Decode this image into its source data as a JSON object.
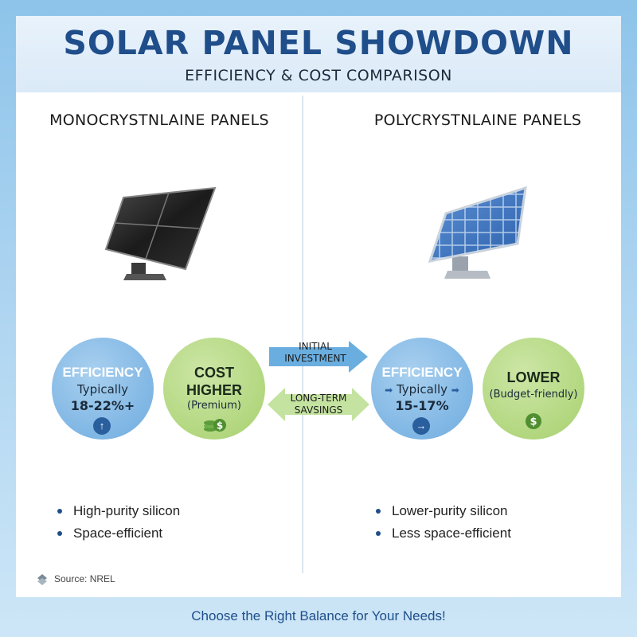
{
  "header": {
    "title": "SOLAR PANEL SHOWDOWN",
    "subtitle": "EFFICIENCY & COST COMPARISON"
  },
  "mono": {
    "title": "MONOCRYSTNLAINE PANELS",
    "efficiency": {
      "label": "EFFICIENCY",
      "line1": "Typically",
      "line2": "18-22%+",
      "icon": "arrow-up-icon"
    },
    "cost": {
      "label": "COST",
      "line1": "HIGHER",
      "line2": "(Premium)",
      "icon": "coins-dollar-icon"
    },
    "bullets": [
      "High-purity silicon",
      "Space-efficient"
    ]
  },
  "poly": {
    "title": "POLYCRYSTNLAINE PANELS",
    "efficiency": {
      "label": "EFFICIENCY",
      "line1": "Typically",
      "line2": "15-17%",
      "icon": "arrow-right-icon"
    },
    "cost": {
      "label": "LOWER",
      "line1": "(Budget-friendly)",
      "icon": "dollar-icon"
    },
    "bullets": [
      "Lower-purity silicon",
      "Less space-efficient"
    ]
  },
  "arrows": {
    "initial": {
      "line1": "INITIAL",
      "line2": "INVESTMENT"
    },
    "longterm": {
      "line1": "LONG-TERM",
      "line2": "SAVSINGS"
    }
  },
  "source": "Source: NREL",
  "footer": "Choose the Right Balance for Your Needs!",
  "colors": {
    "title": "#1f4e8a",
    "blue_circle": "#7fb6e4",
    "green_circle": "#b2d77f",
    "arrow_blue": "#6aaee0",
    "arrow_green": "#c4e3a0"
  }
}
